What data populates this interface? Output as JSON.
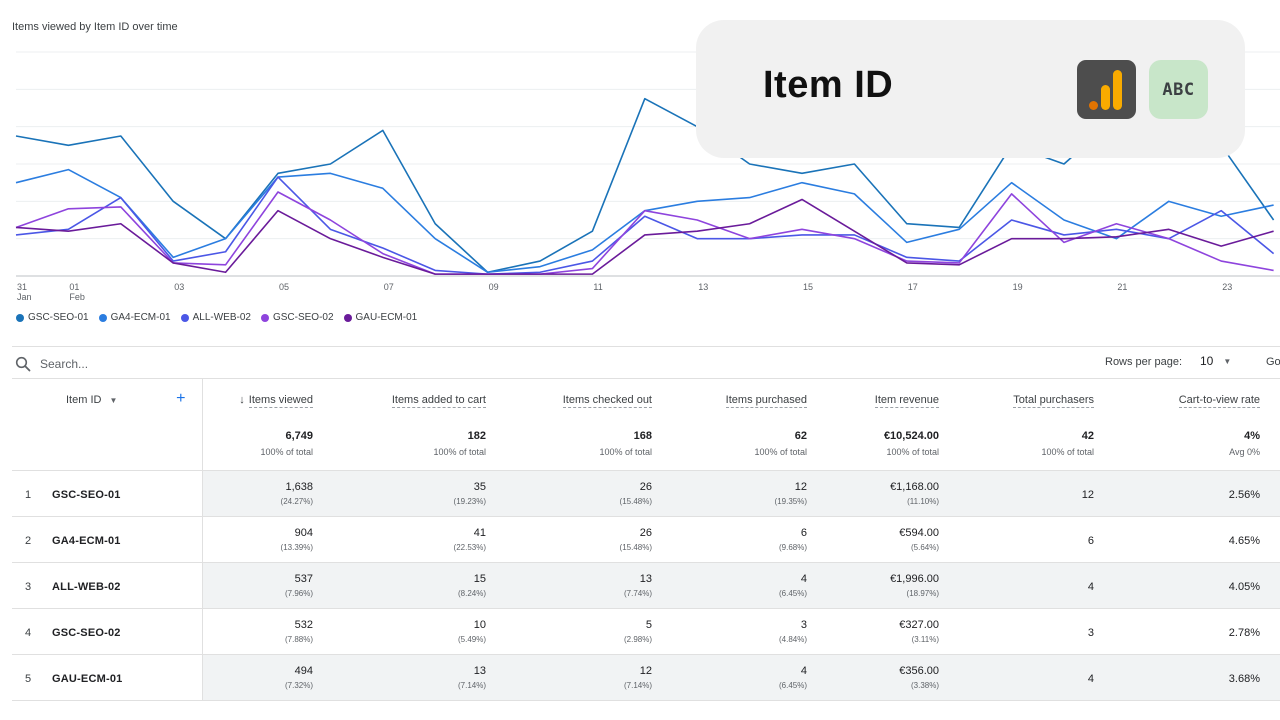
{
  "chart_data": {
    "type": "line",
    "title": "Items viewed by Item ID over time",
    "x": [
      "31 Jan",
      "01 Feb",
      "02",
      "03",
      "04",
      "05",
      "06",
      "07",
      "08",
      "09",
      "10",
      "11",
      "12",
      "13",
      "14",
      "15",
      "16",
      "17",
      "18",
      "19",
      "20",
      "21",
      "22",
      "23",
      "24"
    ],
    "x_tick_labels": [
      {
        "index": 0,
        "top": "31",
        "bottom": "Jan"
      },
      {
        "index": 1,
        "top": "01",
        "bottom": "Feb"
      },
      {
        "index": 3,
        "top": "03",
        "bottom": ""
      },
      {
        "index": 5,
        "top": "05",
        "bottom": ""
      },
      {
        "index": 7,
        "top": "07",
        "bottom": ""
      },
      {
        "index": 9,
        "top": "09",
        "bottom": ""
      },
      {
        "index": 11,
        "top": "11",
        "bottom": ""
      },
      {
        "index": 13,
        "top": "13",
        "bottom": ""
      },
      {
        "index": 15,
        "top": "15",
        "bottom": ""
      },
      {
        "index": 17,
        "top": "17",
        "bottom": ""
      },
      {
        "index": 19,
        "top": "19",
        "bottom": ""
      },
      {
        "index": 21,
        "top": "21",
        "bottom": ""
      },
      {
        "index": 23,
        "top": "23",
        "bottom": ""
      }
    ],
    "ylim": [
      0,
      120
    ],
    "grid": true,
    "legend_position": "bottom-left",
    "series": [
      {
        "name": "GSC-SEO-01",
        "color": "#1a73b8",
        "values": [
          75,
          70,
          75,
          40,
          20,
          55,
          60,
          78,
          28,
          2,
          8,
          24,
          95,
          80,
          60,
          55,
          60,
          28,
          26,
          70,
          60,
          85,
          80,
          70,
          30
        ]
      },
      {
        "name": "GA4-ECM-01",
        "color": "#2b7de0",
        "values": [
          50,
          57,
          42,
          10,
          20,
          53,
          55,
          47,
          20,
          2,
          5,
          14,
          35,
          40,
          42,
          50,
          44,
          18,
          25,
          50,
          30,
          20,
          40,
          32,
          38
        ]
      },
      {
        "name": "ALL-WEB-02",
        "color": "#4b57e6",
        "values": [
          22,
          25,
          42,
          8,
          13,
          53,
          25,
          15,
          3,
          1,
          2,
          8,
          32,
          20,
          20,
          22,
          22,
          10,
          8,
          30,
          22,
          25,
          20,
          35,
          12
        ]
      },
      {
        "name": "GSC-SEO-02",
        "color": "#8e44dd",
        "values": [
          26,
          36,
          37,
          7,
          6,
          45,
          30,
          12,
          1,
          1,
          1,
          4,
          35,
          30,
          20,
          25,
          20,
          8,
          7,
          44,
          18,
          28,
          20,
          8,
          3
        ]
      },
      {
        "name": "GAU-ECM-01",
        "color": "#6a1b9a",
        "values": [
          26,
          24,
          28,
          7,
          2,
          35,
          20,
          10,
          1,
          1,
          1,
          1,
          22,
          24,
          28,
          41,
          24,
          7,
          6,
          20,
          20,
          21,
          25,
          16,
          24
        ]
      }
    ]
  },
  "overlay": {
    "title": "Item ID",
    "icons": [
      "analytics-icon",
      "text-abc-icon"
    ],
    "abc_text": "ABC",
    "ga_bar_colors": [
      "#f9ab00",
      "#e37400"
    ]
  },
  "search": {
    "placeholder": "Search..."
  },
  "pagination": {
    "rows_label": "Rows per page:",
    "rows_value": "10",
    "goto_label": "Go"
  },
  "table": {
    "dimension_header": "Item ID",
    "sort_arrow": "↓",
    "columns": [
      {
        "key": "viewed",
        "label": "Items viewed",
        "total": "6,749",
        "total_sub": "100% of total"
      },
      {
        "key": "cart",
        "label": "Items added to cart",
        "total": "182",
        "total_sub": "100% of total"
      },
      {
        "key": "checked",
        "label": "Items checked out",
        "total": "168",
        "total_sub": "100% of total"
      },
      {
        "key": "purchased",
        "label": "Items purchased",
        "total": "62",
        "total_sub": "100% of total"
      },
      {
        "key": "revenue",
        "label": "Item revenue",
        "total": "€10,524.00",
        "total_sub": "100% of total"
      },
      {
        "key": "purchasers",
        "label": "Total purchasers",
        "total": "42",
        "total_sub": "100% of total"
      },
      {
        "key": "ctv",
        "label": "Cart-to-view rate",
        "total": "4%",
        "total_sub": "Avg 0%"
      }
    ],
    "rows": [
      {
        "rank": "1",
        "id": "GSC-SEO-01",
        "viewed": "1,638",
        "viewed_pct": "(24.27%)",
        "cart": "35",
        "cart_pct": "(19.23%)",
        "checked": "26",
        "checked_pct": "(15.48%)",
        "purchased": "12",
        "purchased_pct": "(19.35%)",
        "revenue": "€1,168.00",
        "revenue_pct": "(11.10%)",
        "purchasers": "12",
        "ctv": "2.56%"
      },
      {
        "rank": "2",
        "id": "GA4-ECM-01",
        "viewed": "904",
        "viewed_pct": "(13.39%)",
        "cart": "41",
        "cart_pct": "(22.53%)",
        "checked": "26",
        "checked_pct": "(15.48%)",
        "purchased": "6",
        "purchased_pct": "(9.68%)",
        "revenue": "€594.00",
        "revenue_pct": "(5.64%)",
        "purchasers": "6",
        "ctv": "4.65%"
      },
      {
        "rank": "3",
        "id": "ALL-WEB-02",
        "viewed": "537",
        "viewed_pct": "(7.96%)",
        "cart": "15",
        "cart_pct": "(8.24%)",
        "checked": "13",
        "checked_pct": "(7.74%)",
        "purchased": "4",
        "purchased_pct": "(6.45%)",
        "revenue": "€1,996.00",
        "revenue_pct": "(18.97%)",
        "purchasers": "4",
        "ctv": "4.05%"
      },
      {
        "rank": "4",
        "id": "GSC-SEO-02",
        "viewed": "532",
        "viewed_pct": "(7.88%)",
        "cart": "10",
        "cart_pct": "(5.49%)",
        "checked": "5",
        "checked_pct": "(2.98%)",
        "purchased": "3",
        "purchased_pct": "(4.84%)",
        "revenue": "€327.00",
        "revenue_pct": "(3.11%)",
        "purchasers": "3",
        "ctv": "2.78%"
      },
      {
        "rank": "5",
        "id": "GAU-ECM-01",
        "viewed": "494",
        "viewed_pct": "(7.32%)",
        "cart": "13",
        "cart_pct": "(7.14%)",
        "checked": "12",
        "checked_pct": "(7.14%)",
        "purchased": "4",
        "purchased_pct": "(6.45%)",
        "revenue": "€356.00",
        "revenue_pct": "(3.38%)",
        "purchasers": "4",
        "ctv": "3.68%"
      }
    ]
  }
}
